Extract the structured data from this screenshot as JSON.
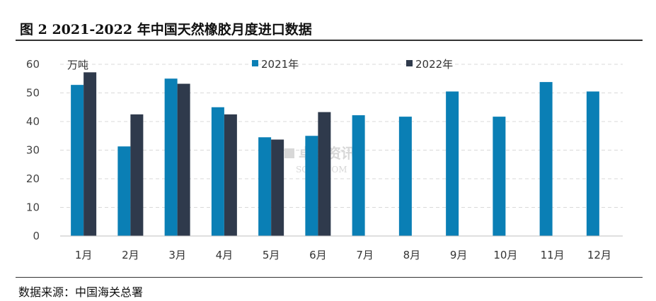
{
  "figure": {
    "title": "图 2 2021-2022 年中国天然橡胶月度进口数据",
    "source": "数据来源：中国海关总署",
    "watermark": "卓创资讯",
    "watermark_sub": "SCI99.COM"
  },
  "chart_data": {
    "type": "bar",
    "title": "图 2 2021-2022 年中国天然橡胶月度进口数据",
    "ylabel": "万吨",
    "xlabel": "",
    "ylim": [
      0,
      60
    ],
    "yticks": [
      0,
      10,
      20,
      30,
      40,
      50,
      60
    ],
    "grid": true,
    "legend_position": "top",
    "categories": [
      "1月",
      "2月",
      "3月",
      "4月",
      "5月",
      "6月",
      "7月",
      "8月",
      "9月",
      "10月",
      "11月",
      "12月"
    ],
    "series": [
      {
        "name": "2021年",
        "color": "#0a7fb5",
        "values": [
          52.8,
          31.3,
          55.0,
          45.0,
          34.5,
          35.0,
          42.2,
          41.7,
          50.5,
          41.7,
          53.8,
          50.5
        ]
      },
      {
        "name": "2022年",
        "color": "#2f3a4c",
        "values": [
          57.2,
          42.5,
          53.2,
          42.5,
          33.7,
          43.3,
          null,
          null,
          null,
          null,
          null,
          null
        ]
      }
    ]
  }
}
